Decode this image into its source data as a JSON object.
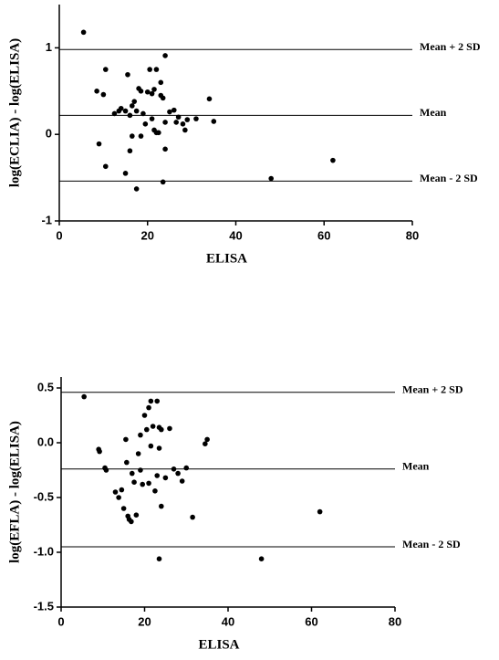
{
  "chart_data": [
    {
      "type": "scatter",
      "x_label": "ELISA",
      "y_label": "log(ECLIA) - log(ELISA)",
      "xlim": [
        0,
        80
      ],
      "xticks": [
        0,
        20,
        40,
        60,
        80
      ],
      "ylim": [
        -1,
        1.5
      ],
      "yticks": [
        -1,
        0,
        1
      ],
      "color": "#000000",
      "hlines": [
        {
          "value": 0.98,
          "label": "Mean + 2 SD"
        },
        {
          "value": 0.22,
          "label": "Mean"
        },
        {
          "value": -0.54,
          "label": "Mean - 2 SD"
        }
      ],
      "x": [
        5.5,
        8.5,
        10,
        10.5,
        9,
        10.5,
        12.5,
        13.5,
        14,
        15,
        15.5,
        16,
        16.5,
        17,
        17.5,
        18,
        18.5,
        19,
        15,
        16,
        16.5,
        17.5,
        18.5,
        19.5,
        20,
        20.5,
        21,
        21.5,
        22,
        21,
        21.5,
        22,
        22.5,
        23,
        23.5,
        23,
        24,
        24,
        24,
        23.5,
        25,
        26,
        26.5,
        27,
        28,
        28.5,
        29,
        31,
        34,
        35,
        48,
        62
      ],
      "values": [
        1.18,
        0.5,
        0.46,
        0.75,
        -0.11,
        -0.37,
        0.24,
        0.27,
        0.3,
        0.27,
        0.69,
        0.22,
        0.33,
        0.38,
        0.27,
        0.53,
        0.5,
        0.24,
        -0.45,
        -0.19,
        -0.02,
        -0.63,
        -0.02,
        0.12,
        0.49,
        0.75,
        0.47,
        0.52,
        0.75,
        0.18,
        0.05,
        0.02,
        0.02,
        0.45,
        0.42,
        0.6,
        0.91,
        0.14,
        -0.17,
        -0.55,
        0.26,
        0.28,
        0.14,
        0.2,
        0.12,
        0.05,
        0.17,
        0.18,
        0.41,
        0.15,
        -0.51,
        -0.3
      ]
    },
    {
      "type": "scatter",
      "x_label": "ELISA",
      "y_label": "log(EFLA) - log(ELISA)",
      "xlim": [
        0,
        80
      ],
      "xticks": [
        0,
        20,
        40,
        60,
        80
      ],
      "ylim": [
        -1.5,
        0.6
      ],
      "yticks": [
        -1.5,
        {
          "value": -1.0,
          "label": "-1.0"
        },
        -0.5,
        {
          "value": 0,
          "label": "0.0"
        },
        0.5
      ],
      "color": "#000000",
      "hlines": [
        {
          "value": 0.46,
          "label": "Mean + 2 SD"
        },
        {
          "value": -0.24,
          "label": "Mean"
        },
        {
          "value": -0.95,
          "label": "Mean - 2 SD"
        }
      ],
      "x": [
        5.5,
        9,
        9.2,
        10.5,
        10.8,
        13,
        13.8,
        14.5,
        15,
        15.5,
        15.7,
        16,
        16.3,
        16.8,
        17,
        17.5,
        18,
        18.5,
        19,
        19,
        19.5,
        20,
        20.5,
        21,
        21,
        21.5,
        21.5,
        22,
        22.5,
        23,
        23,
        23.5,
        23.5,
        24,
        24,
        23.5,
        25,
        26,
        27,
        28,
        29,
        30,
        31.5,
        34.5,
        35,
        48,
        62
      ],
      "values": [
        0.42,
        -0.06,
        -0.08,
        -0.23,
        -0.25,
        -0.45,
        -0.5,
        -0.43,
        -0.6,
        0.03,
        -0.18,
        -0.67,
        -0.7,
        -0.72,
        -0.28,
        -0.36,
        -0.66,
        -0.1,
        -0.25,
        0.07,
        -0.38,
        0.25,
        0.12,
        0.32,
        -0.37,
        0.38,
        -0.03,
        0.15,
        -0.44,
        -0.3,
        0.38,
        0.14,
        -0.05,
        0.12,
        -0.58,
        -1.06,
        -0.32,
        0.13,
        -0.24,
        -0.28,
        -0.35,
        -0.23,
        -0.68,
        -0.01,
        0.03,
        -1.06,
        -0.63
      ]
    }
  ]
}
